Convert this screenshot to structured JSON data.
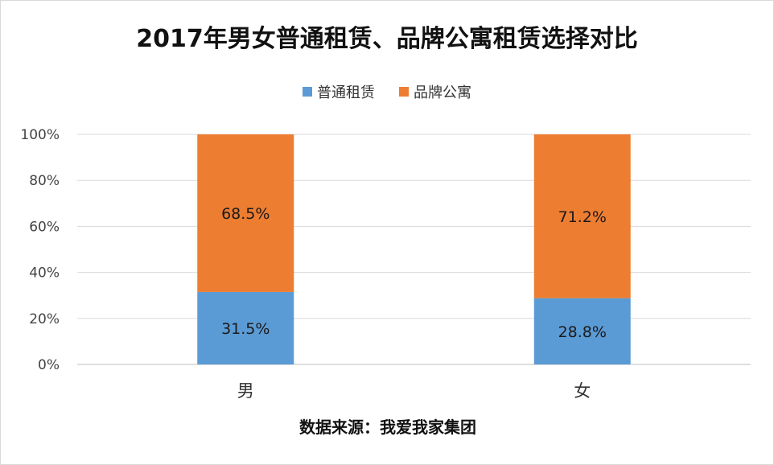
{
  "chart_data": {
    "type": "bar",
    "stacked": true,
    "title": "2017年男女普通租赁、品牌公寓租赁选择对比",
    "categories": [
      "男",
      "女"
    ],
    "series": [
      {
        "name": "普通租赁",
        "values": [
          31.5,
          28.8
        ],
        "labels": [
          "31.5%",
          "28.8%"
        ],
        "color": "#5b9bd5"
      },
      {
        "name": "品牌公寓",
        "values": [
          68.5,
          71.2
        ],
        "labels": [
          "68.5%",
          "71.2%"
        ],
        "color": "#ed7d31"
      }
    ],
    "y_ticks": [
      "0%",
      "20%",
      "40%",
      "60%",
      "80%",
      "100%"
    ],
    "ylim": [
      0,
      100
    ],
    "grid": true,
    "legend_position": "top",
    "source": "数据来源：我爱我家集团"
  }
}
